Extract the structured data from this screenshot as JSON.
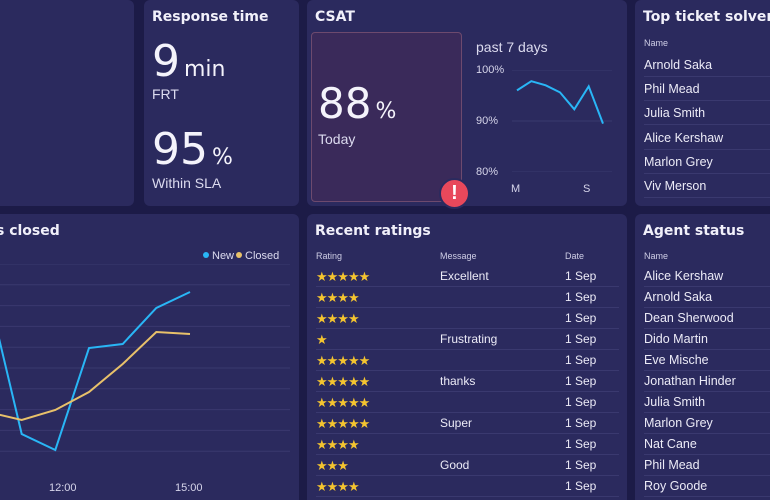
{
  "response_time": {
    "title": "Response time",
    "frt_value": "9",
    "frt_unit": "min",
    "frt_label": "FRT",
    "sla_value": "95",
    "sla_unit": "%",
    "sla_label": "Within SLA"
  },
  "csat": {
    "title": "CSAT",
    "today_value": "88",
    "today_unit": "%",
    "today_label": "Today",
    "warning_symbol": "!",
    "chart_data": {
      "type": "line",
      "title": "past 7 days",
      "y_ticks": [
        "100%",
        "90%",
        "80%"
      ],
      "ylim": [
        80,
        100
      ],
      "x_ticks": [
        "M",
        "S"
      ],
      "series": [
        {
          "values": [
            96,
            97.8,
            97,
            95.6,
            92.3,
            96.8,
            89.5
          ]
        }
      ],
      "color": "#29b6f6"
    }
  },
  "top_solvers": {
    "title": "Top ticket solvers",
    "col_name": "Name",
    "names": [
      "Arnold Saka",
      "Phil Mead",
      "Julia Smith",
      "Alice Kershaw",
      "Marlon Grey",
      "Viv Merson"
    ]
  },
  "tickets": {
    "title": "s closed",
    "chart_data": {
      "type": "line",
      "x_ticks": [
        "12:00",
        "15:00"
      ],
      "series": [
        {
          "name": "New",
          "color": "#29b6f6",
          "values": [
            86,
            15,
            7,
            58,
            60,
            78,
            86
          ]
        },
        {
          "name": "Closed",
          "color": "#e8c16a",
          "values": [
            26,
            22,
            27,
            36,
            50,
            66,
            65
          ]
        }
      ],
      "ylim": [
        0,
        100
      ],
      "grid": true,
      "legend": "top-right"
    }
  },
  "recent_ratings": {
    "title": "Recent ratings",
    "col_rating": "Rating",
    "col_message": "Message",
    "col_date": "Date",
    "rows": [
      {
        "stars": "★★★★★",
        "message": "Excellent",
        "date": "1 Sep"
      },
      {
        "stars": "★★★★",
        "message": "",
        "date": "1 Sep"
      },
      {
        "stars": "★★★★",
        "message": "",
        "date": "1 Sep"
      },
      {
        "stars": "★",
        "message": "Frustrating",
        "date": "1 Sep"
      },
      {
        "stars": "★★★★★",
        "message": "",
        "date": "1 Sep"
      },
      {
        "stars": "★★★★★",
        "message": "thanks",
        "date": "1 Sep"
      },
      {
        "stars": "★★★★★",
        "message": "",
        "date": "1 Sep"
      },
      {
        "stars": "★★★★★",
        "message": "Super",
        "date": "1 Sep"
      },
      {
        "stars": "★★★★",
        "message": "",
        "date": "1 Sep"
      },
      {
        "stars": "★★★",
        "message": "Good",
        "date": "1 Sep"
      },
      {
        "stars": "★★★★",
        "message": "",
        "date": "1 Sep"
      }
    ]
  },
  "agent_status": {
    "title": "Agent status",
    "col_name": "Name",
    "names": [
      "Alice Kershaw",
      "Arnold Saka",
      "Dean Sherwood",
      "Dido Martin",
      "Eve Mische",
      "Jonathan Hinder",
      "Julia Smith",
      "Marlon Grey",
      "Nat Cane",
      "Phil Mead",
      "Roy Goode"
    ]
  }
}
